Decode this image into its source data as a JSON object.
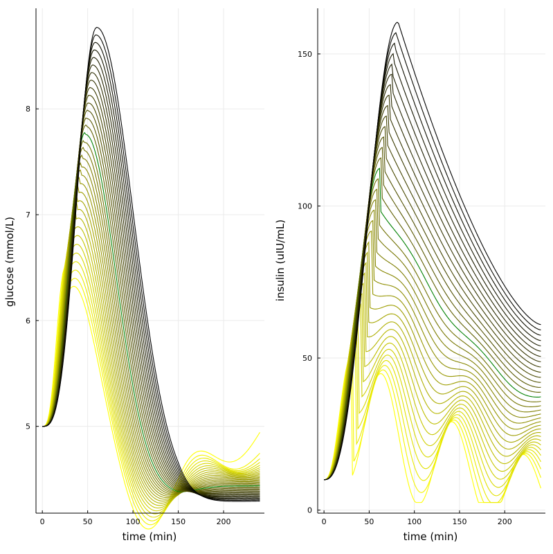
{
  "chart_data": [
    {
      "type": "line",
      "xlabel": "time (min)",
      "ylabel": "glucose (mmol/L)",
      "xlim": [
        -7,
        245
      ],
      "ylim": [
        4.18,
        8.95
      ],
      "xticks": [
        0,
        50,
        100,
        150,
        200
      ],
      "yticks": [
        5,
        6,
        7,
        8
      ],
      "grid": true,
      "legend": "none",
      "curve_count": 33,
      "highlight_index": 18,
      "params": {
        "baseline": 5.0,
        "peaks_first_to_last": [
          6.5,
          8.77
        ],
        "peak_time_first_to_last": [
          25,
          60
        ],
        "end_first_to_last": [
          5.25,
          4.3
        ]
      },
      "series_summary": [
        {
          "x": [
            0,
            25,
            45,
            60,
            120,
            180,
            240
          ],
          "y_outer": [
            5.0,
            7.25,
            8.6,
            8.77,
            6.8,
            5.1,
            4.3
          ]
        },
        {
          "x": [
            0,
            20,
            25,
            45,
            57,
            75,
            95,
            130,
            155,
            200,
            240
          ],
          "y_inner": [
            5.0,
            6.2,
            6.5,
            5.2,
            4.4,
            5.0,
            5.36,
            4.5,
            4.9,
            4.55,
            5.25
          ]
        }
      ]
    },
    {
      "type": "line",
      "xlabel": "time (min)",
      "ylabel": "insulin (uIU/mL)",
      "xlim": [
        -7,
        245
      ],
      "ylim": [
        -1,
        165
      ],
      "xticks": [
        0,
        50,
        100,
        150,
        200
      ],
      "yticks": [
        0,
        50,
        100,
        150
      ],
      "grid": true,
      "legend": "none",
      "curve_count": 33,
      "highlight_index": 18,
      "params": {
        "baseline": 10.0,
        "peaks_first_to_last": [
          50.5,
          160.5
        ],
        "peak_time_first_to_last": [
          30,
          82
        ],
        "end_first_to_last": [
          12,
          61
        ]
      },
      "series_summary": [
        {
          "x": [
            0,
            40,
            82,
            140,
            200,
            240
          ],
          "y_outer": [
            10,
            95,
            160.5,
            120,
            80,
            61
          ]
        },
        {
          "x": [
            0,
            20,
            30,
            50,
            70,
            100,
            140,
            175,
            210,
            240
          ],
          "y_inner": [
            10,
            38,
            50.5,
            18,
            5,
            29,
            4,
            20,
            3,
            12
          ]
        }
      ]
    }
  ],
  "colors": {
    "first_curve": "#ffff00",
    "last_curve": "#000000",
    "highlight_curve": "#008000",
    "frame": "#000000",
    "grid": "#ebebeb"
  }
}
